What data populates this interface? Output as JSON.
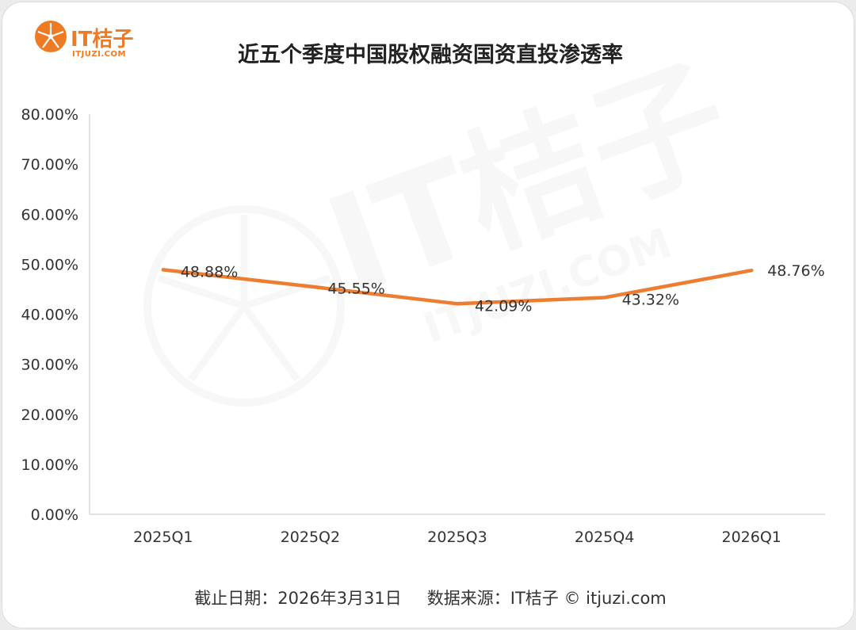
{
  "header": {
    "logo_text": "IT桔子",
    "logo_sub": "ITJUZI.COM",
    "title": "近五个季度中国股权融资国资直投渗透率"
  },
  "watermark": {
    "brand": "IT桔子",
    "domain": "ITJUZI.COM"
  },
  "footer": {
    "date_label": "截止日期：2026年3月31日",
    "source_label": "数据来源：IT桔子 © itjuzi.com"
  },
  "colors": {
    "accent": "#ef7a24",
    "line": "#ed7d31",
    "axis": "#d9d9d9",
    "text": "#333333"
  },
  "chart_data": {
    "type": "line",
    "title": "近五个季度中国股权融资国资直投渗透率",
    "categories": [
      "2025Q1",
      "2025Q2",
      "2025Q3",
      "2025Q4",
      "2026Q1"
    ],
    "values": [
      48.88,
      45.55,
      42.09,
      43.32,
      48.76
    ],
    "data_labels": [
      "48.88%",
      "45.55%",
      "42.09%",
      "43.32%",
      "48.76%"
    ],
    "ylim": [
      0,
      80
    ],
    "yticks": [
      0,
      10,
      20,
      30,
      40,
      50,
      60,
      70,
      80
    ],
    "ytick_labels": [
      "0.00%",
      "10.00%",
      "20.00%",
      "30.00%",
      "40.00%",
      "50.00%",
      "60.00%",
      "70.00%",
      "80.00%"
    ],
    "xlabel": "",
    "ylabel": "",
    "grid": false,
    "legend": "none"
  }
}
